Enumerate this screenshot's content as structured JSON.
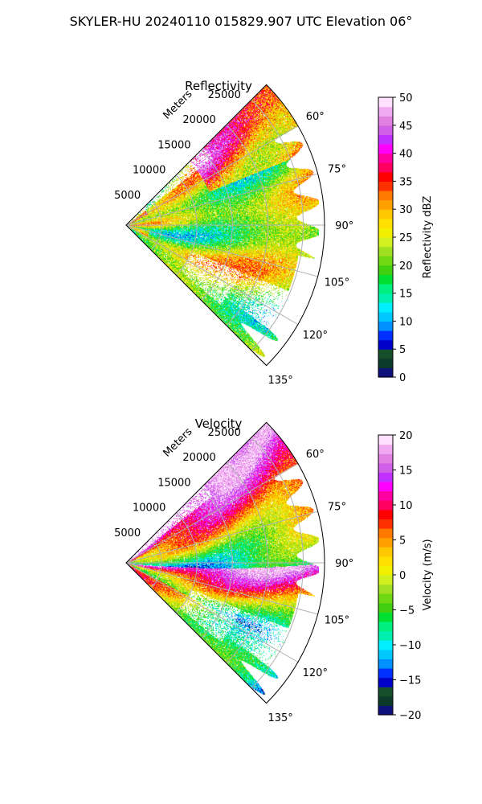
{
  "figure": {
    "title": "SKYLER-HU  20240110  015829.907 UTC Elevation 06°"
  },
  "chart_data": [
    {
      "type": "heatmap",
      "projection": "polar-sector",
      "title": "Reflectivity",
      "radial_axis_label": "Meters",
      "radial_ticks": [
        "5000",
        "10000",
        "15000",
        "20000",
        "25000"
      ],
      "radial_range": [
        0,
        28000
      ],
      "angle_ticks": [
        "60°",
        "75°",
        "90°",
        "105°",
        "120°",
        "135°"
      ],
      "angle_range_deg": [
        45,
        135
      ],
      "grid": true,
      "colorbar": {
        "label": "Reflectivity dBZ",
        "ticks": [
          "0",
          "5",
          "10",
          "15",
          "20",
          "25",
          "30",
          "35",
          "40",
          "45",
          "50"
        ],
        "range": [
          0,
          50
        ],
        "colors": [
          "#10107a",
          "#0c3a2a",
          "#164f2b",
          "#0000c8",
          "#0030ff",
          "#0090ff",
          "#00c8ff",
          "#00f0ff",
          "#00f0b0",
          "#00f080",
          "#00e030",
          "#40d010",
          "#70d810",
          "#a0e020",
          "#d0f020",
          "#f0f000",
          "#ffe000",
          "#ffc800",
          "#ffa000",
          "#ff7800",
          "#ff3000",
          "#ff0000",
          "#ff0060",
          "#ff00a0",
          "#ff00ff",
          "#c030ff",
          "#d060e8",
          "#e080e0",
          "#f0a8f0",
          "#ffe0ff"
        ]
      }
    },
    {
      "type": "heatmap",
      "projection": "polar-sector",
      "title": "Velocity",
      "radial_axis_label": "Meters",
      "radial_ticks": [
        "5000",
        "10000",
        "15000",
        "20000",
        "25000"
      ],
      "radial_range": [
        0,
        28000
      ],
      "angle_ticks": [
        "60°",
        "75°",
        "90°",
        "105°",
        "120°",
        "135°"
      ],
      "angle_range_deg": [
        45,
        135
      ],
      "grid": true,
      "colorbar": {
        "label": "Velocity (m/s)",
        "ticks": [
          "−20",
          "−15",
          "−10",
          "−5",
          "0",
          "5",
          "10",
          "15",
          "20"
        ],
        "range": [
          -20,
          20
        ],
        "colors": [
          "#10107a",
          "#0c3a2a",
          "#164f2b",
          "#0000c8",
          "#0030ff",
          "#0090ff",
          "#00c8ff",
          "#00f0ff",
          "#00f0b0",
          "#00f080",
          "#00e030",
          "#40d010",
          "#70d810",
          "#a0e020",
          "#d0f020",
          "#f0f000",
          "#ffe000",
          "#ffc800",
          "#ffa000",
          "#ff7800",
          "#ff3000",
          "#ff0000",
          "#ff0060",
          "#ff00a0",
          "#ff00ff",
          "#c030ff",
          "#d060e8",
          "#e080e0",
          "#f0a8f0",
          "#ffe0ff"
        ]
      }
    }
  ]
}
